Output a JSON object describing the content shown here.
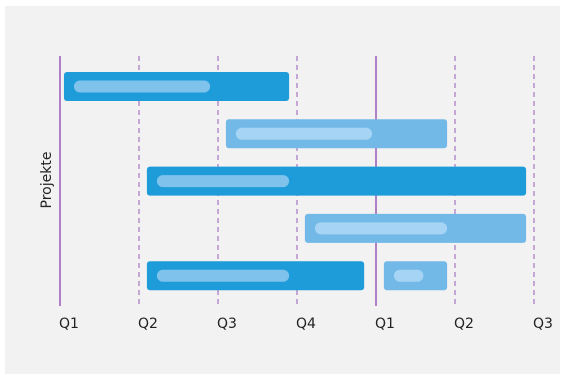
{
  "chart_data": {
    "type": "gantt",
    "ylabel": "Projekte",
    "x_ticks": [
      "Q1",
      "Q2",
      "Q3",
      "Q4",
      "Q1",
      "Q2",
      "Q3"
    ],
    "year_boundaries": [
      0,
      4
    ],
    "rows": [
      {
        "bars": [
          {
            "start": 0.05,
            "end": 2.9,
            "progress_end": 1.9,
            "style": "dark"
          }
        ]
      },
      {
        "bars": [
          {
            "start": 2.1,
            "end": 4.9,
            "progress_end": 3.95,
            "style": "light"
          }
        ]
      },
      {
        "bars": [
          {
            "start": 1.1,
            "end": 5.9,
            "progress_end": 2.9,
            "style": "dark"
          }
        ]
      },
      {
        "bars": [
          {
            "start": 3.1,
            "end": 5.9,
            "progress_end": 4.9,
            "style": "light"
          }
        ]
      },
      {
        "bars": [
          {
            "start": 1.1,
            "end": 3.85,
            "progress_end": 2.9,
            "style": "dark"
          },
          {
            "start": 4.1,
            "end": 4.9,
            "progress_end": 4.6,
            "style": "light"
          }
        ]
      }
    ],
    "colors": {
      "bar_dark": "#1e9bd9",
      "bar_light": "#72b9e8",
      "progress_on_dark": "#7fc3ec",
      "progress_on_light": "#a5d4f4",
      "gridline": "#9b59b6"
    }
  }
}
